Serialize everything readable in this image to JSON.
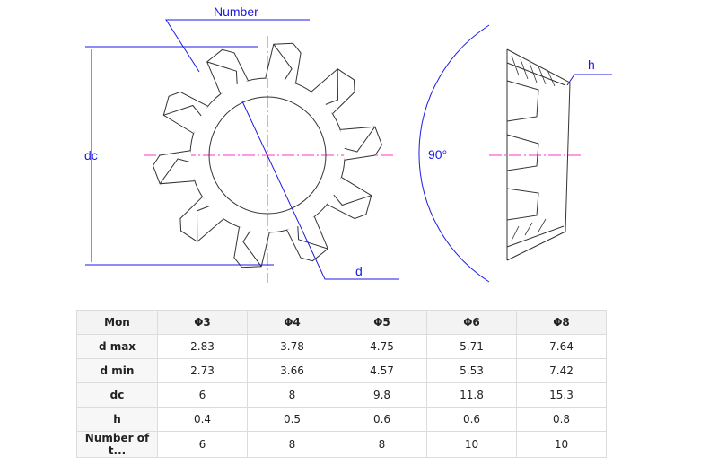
{
  "drawing": {
    "labels": {
      "number": "Number",
      "d": "d",
      "dc": "dc",
      "h": "h",
      "angle": "90°"
    },
    "colors": {
      "dimension": "#1a1ae6",
      "centerline": "#ff33cc",
      "outline": "#333333"
    }
  },
  "table": {
    "headers": [
      "Mon",
      "Φ3",
      "Φ4",
      "Φ5",
      "Φ6",
      "Φ8"
    ],
    "rows": [
      {
        "label": "d max",
        "values": [
          "2.83",
          "3.78",
          "4.75",
          "5.71",
          "7.64"
        ]
      },
      {
        "label": "d min",
        "values": [
          "2.73",
          "3.66",
          "4.57",
          "5.53",
          "7.42"
        ]
      },
      {
        "label": "dc",
        "values": [
          "6",
          "8",
          "9.8",
          "11.8",
          "15.3"
        ]
      },
      {
        "label": "h",
        "values": [
          "0.4",
          "0.5",
          "0.6",
          "0.6",
          "0.8"
        ]
      },
      {
        "label": "Number of t...",
        "values": [
          "6",
          "8",
          "8",
          "10",
          "10"
        ]
      }
    ]
  }
}
